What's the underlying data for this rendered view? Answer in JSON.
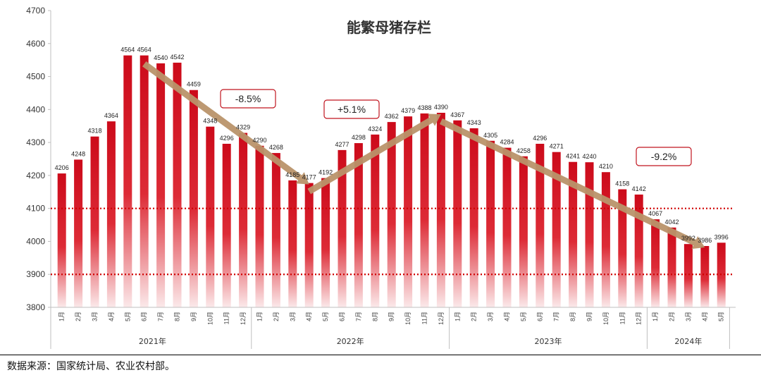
{
  "chart_data": {
    "type": "bar",
    "title": "能繁母猪存栏",
    "ylim": [
      3800,
      4700
    ],
    "yticks": [
      3800,
      3900,
      4000,
      4100,
      4200,
      4300,
      4400,
      4500,
      4600,
      4700
    ],
    "reference_lines": [
      4100,
      3900
    ],
    "categories": [
      "1月",
      "2月",
      "3月",
      "4月",
      "5月",
      "6月",
      "7月",
      "8月",
      "9月",
      "10月",
      "11月",
      "12月",
      "1月",
      "2月",
      "3月",
      "4月",
      "5月",
      "6月",
      "7月",
      "8月",
      "9月",
      "10月",
      "11月",
      "12月",
      "1月",
      "2月",
      "3月",
      "4月",
      "5月",
      "6月",
      "7月",
      "8月",
      "9月",
      "10月",
      "11月",
      "12月",
      "1月",
      "2月",
      "3月",
      "4月",
      "5月"
    ],
    "values": [
      4206,
      4248,
      4318,
      4364,
      4564,
      4564,
      4540,
      4542,
      4459,
      4348,
      4296,
      4329,
      4290,
      4268,
      4185,
      4177,
      4192,
      4277,
      4298,
      4324,
      4362,
      4379,
      4388,
      4390,
      4367,
      4343,
      4305,
      4284,
      4258,
      4296,
      4271,
      4241,
      4240,
      4210,
      4158,
      4142,
      4067,
      4042,
      3992,
      3986,
      3996
    ],
    "years": [
      {
        "label": "2021年",
        "count": 12
      },
      {
        "label": "2022年",
        "count": 12
      },
      {
        "label": "2023年",
        "count": 12
      },
      {
        "label": "2024年",
        "count": 5
      }
    ],
    "trend_arrows": [
      {
        "from_index": 5,
        "to_index": 15,
        "label": "-8.5%"
      },
      {
        "from_index": 15,
        "to_index": 23,
        "label": "+5.1%"
      },
      {
        "from_index": 23,
        "to_index": 39,
        "label": "-9.2%"
      }
    ]
  },
  "source_text": "数据来源：国家统计局、农业农村部。",
  "colors": {
    "bar_top": "#d50a1c",
    "bar_bottom": "#ffffff",
    "arrow": "#b9936a",
    "refline": "#d00000",
    "label_border": "#c0141e"
  }
}
